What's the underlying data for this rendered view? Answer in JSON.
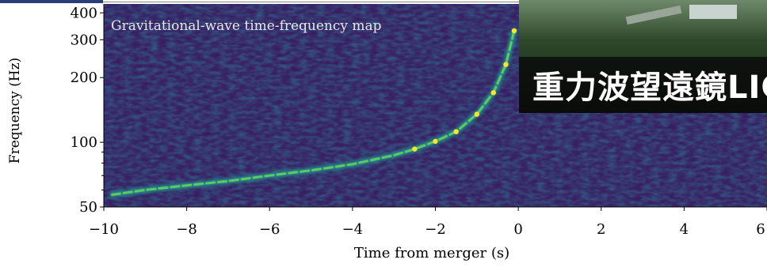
{
  "chart_data": {
    "type": "heatmap",
    "title": "Gravitational-wave time-frequency map",
    "xlabel": "Time from merger (s)",
    "ylabel": "Frequency (Hz)",
    "xlim": [
      -10,
      6
    ],
    "ylim": [
      50,
      440
    ],
    "yscale": "log",
    "x_ticks": [
      -10,
      -8,
      -6,
      -4,
      -2,
      0,
      2,
      4,
      6
    ],
    "x_tick_labels": [
      "−10",
      "−8",
      "−6",
      "−4",
      "−2",
      "0",
      "2",
      "4",
      "6"
    ],
    "y_ticks": [
      50,
      100,
      200,
      300,
      400
    ],
    "y_tick_labels": [
      "50",
      "100",
      "200",
      "300",
      "400"
    ],
    "colormap": [
      "#440154",
      "#3b528b",
      "#21918c",
      "#5ec962",
      "#fde725"
    ],
    "chirp_track": {
      "x": [
        -9.8,
        -9,
        -8,
        -7,
        -6,
        -5,
        -4,
        -3,
        -2.5,
        -2,
        -1.5,
        -1,
        -0.6,
        -0.3,
        -0.1
      ],
      "y": [
        57,
        60,
        63,
        66,
        70,
        74,
        79,
        87,
        93,
        101,
        112,
        135,
        170,
        230,
        330
      ]
    }
  },
  "photo_overlay": {
    "caption": "重力波望遠鏡LIG"
  }
}
